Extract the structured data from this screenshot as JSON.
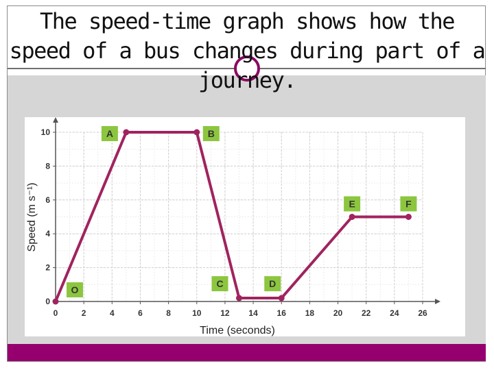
{
  "slide": {
    "title": "The speed-time graph shows how the speed of a bus changes during part of a journey."
  },
  "colors": {
    "line": "#a0235e",
    "label_box": "#8cc63f",
    "footer": "#96006e",
    "ring": "#8b0a64"
  },
  "chart_data": {
    "type": "line",
    "title": "",
    "xlabel": "Time (seconds)",
    "ylabel": "Speed (m s⁻¹)",
    "xlim": [
      0,
      26
    ],
    "ylim": [
      0,
      10
    ],
    "x_ticks": [
      0,
      2,
      4,
      6,
      8,
      10,
      12,
      14,
      16,
      18,
      20,
      22,
      24,
      26
    ],
    "y_ticks": [
      0,
      2,
      4,
      6,
      8,
      10
    ],
    "grid": true,
    "series": [
      {
        "x": [
          0,
          5,
          10,
          13,
          16,
          21,
          25
        ],
        "y": [
          0,
          10,
          10,
          0.2,
          0.2,
          5,
          5
        ]
      }
    ],
    "point_labels": [
      {
        "label": "O",
        "x": 0,
        "y": 0
      },
      {
        "label": "A",
        "x": 5,
        "y": 10
      },
      {
        "label": "B",
        "x": 10,
        "y": 10
      },
      {
        "label": "C",
        "x": 13,
        "y": 0.2
      },
      {
        "label": "D",
        "x": 16,
        "y": 0.2
      },
      {
        "label": "E",
        "x": 21,
        "y": 5
      },
      {
        "label": "F",
        "x": 25,
        "y": 5
      }
    ]
  }
}
